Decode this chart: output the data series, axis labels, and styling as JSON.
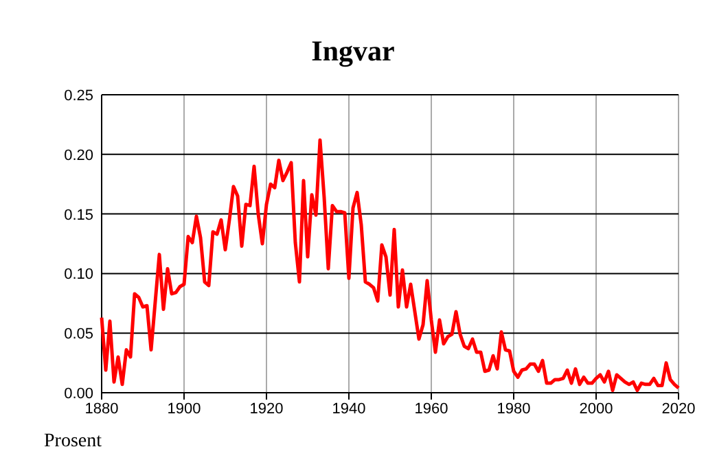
{
  "chart_data": {
    "type": "line",
    "title": "Ingvar",
    "ylabel": "Prosent",
    "x": [
      1880,
      1881,
      1882,
      1883,
      1884,
      1885,
      1886,
      1887,
      1888,
      1889,
      1890,
      1891,
      1892,
      1893,
      1894,
      1895,
      1896,
      1897,
      1898,
      1899,
      1900,
      1901,
      1902,
      1903,
      1904,
      1905,
      1906,
      1907,
      1908,
      1909,
      1910,
      1911,
      1912,
      1913,
      1914,
      1915,
      1916,
      1917,
      1918,
      1919,
      1920,
      1921,
      1922,
      1923,
      1924,
      1925,
      1926,
      1927,
      1928,
      1929,
      1930,
      1931,
      1932,
      1933,
      1934,
      1935,
      1936,
      1937,
      1938,
      1939,
      1940,
      1941,
      1942,
      1943,
      1944,
      1945,
      1946,
      1947,
      1948,
      1949,
      1950,
      1951,
      1952,
      1953,
      1954,
      1955,
      1956,
      1957,
      1958,
      1959,
      1960,
      1961,
      1962,
      1963,
      1964,
      1965,
      1966,
      1967,
      1968,
      1969,
      1970,
      1971,
      1972,
      1973,
      1974,
      1975,
      1976,
      1977,
      1978,
      1979,
      1980,
      1981,
      1982,
      1983,
      1984,
      1985,
      1986,
      1987,
      1988,
      1989,
      1990,
      1991,
      1992,
      1993,
      1994,
      1995,
      1996,
      1997,
      1998,
      1999,
      2000,
      2001,
      2002,
      2003,
      2004,
      2005,
      2006,
      2007,
      2008,
      2009,
      2010,
      2011,
      2012,
      2013,
      2014,
      2015,
      2016,
      2017,
      2018,
      2019,
      2020
    ],
    "series": [
      {
        "color": "#ff0000",
        "values": [
          0.063,
          0.019,
          0.06,
          0.009,
          0.03,
          0.007,
          0.036,
          0.03,
          0.083,
          0.08,
          0.072,
          0.073,
          0.036,
          0.076,
          0.116,
          0.07,
          0.104,
          0.083,
          0.084,
          0.089,
          0.091,
          0.131,
          0.126,
          0.148,
          0.13,
          0.093,
          0.09,
          0.135,
          0.133,
          0.145,
          0.12,
          0.145,
          0.173,
          0.165,
          0.123,
          0.158,
          0.157,
          0.19,
          0.15,
          0.125,
          0.158,
          0.175,
          0.172,
          0.195,
          0.178,
          0.185,
          0.193,
          0.126,
          0.093,
          0.178,
          0.114,
          0.166,
          0.149,
          0.212,
          0.164,
          0.104,
          0.157,
          0.152,
          0.152,
          0.151,
          0.096,
          0.155,
          0.168,
          0.141,
          0.093,
          0.091,
          0.088,
          0.077,
          0.124,
          0.114,
          0.082,
          0.137,
          0.072,
          0.103,
          0.072,
          0.091,
          0.068,
          0.045,
          0.057,
          0.094,
          0.061,
          0.034,
          0.061,
          0.041,
          0.047,
          0.049,
          0.068,
          0.049,
          0.039,
          0.037,
          0.045,
          0.034,
          0.034,
          0.018,
          0.019,
          0.031,
          0.02,
          0.051,
          0.036,
          0.035,
          0.018,
          0.013,
          0.019,
          0.02,
          0.024,
          0.024,
          0.018,
          0.027,
          0.008,
          0.008,
          0.011,
          0.011,
          0.012,
          0.019,
          0.008,
          0.02,
          0.007,
          0.013,
          0.008,
          0.008,
          0.012,
          0.015,
          0.009,
          0.018,
          0.002,
          0.015,
          0.012,
          0.009,
          0.007,
          0.009,
          0.002,
          0.008,
          0.007,
          0.007,
          0.012,
          0.006,
          0.006,
          0.025,
          0.011,
          0.007,
          0.004
        ]
      }
    ],
    "xlim": [
      1880,
      2020
    ],
    "xticks": [
      1880,
      1900,
      1920,
      1940,
      1960,
      1980,
      2000,
      2020
    ],
    "ylim": [
      0,
      0.25
    ],
    "yticks": [
      {
        "value": 0,
        "label": "0.00"
      },
      {
        "value": 0.05,
        "label": "0.05"
      },
      {
        "value": 0.1,
        "label": "0.10"
      },
      {
        "value": 0.15,
        "label": "0.15"
      },
      {
        "value": 0.2,
        "label": "0.20"
      },
      {
        "value": 0.25,
        "label": "0.25"
      }
    ],
    "grid": true,
    "marker": "none",
    "line_style": "solid"
  }
}
